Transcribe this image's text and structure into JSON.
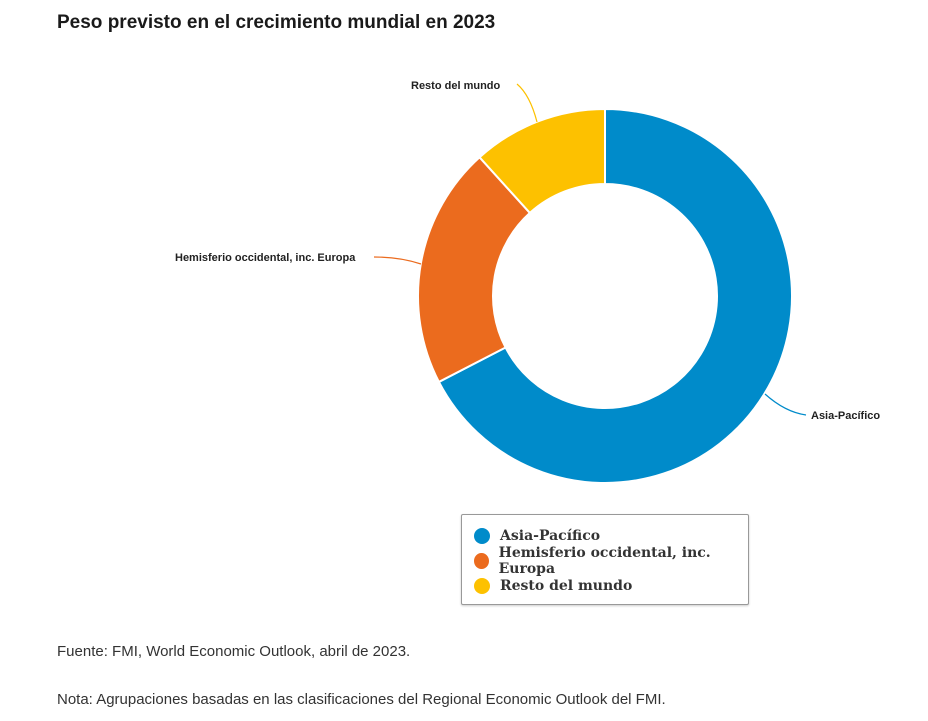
{
  "chart_data": {
    "type": "pie",
    "title": "Peso previsto en el crecimiento mundial en 2023",
    "categories": [
      "Asia-Pacífico",
      "Hemisferio occidental, inc. Europa",
      "Resto del mundo"
    ],
    "values": [
      67.4,
      20.9,
      11.7
    ],
    "unit": "%",
    "colors": [
      "#008bca",
      "#eb6b1e",
      "#fdc100"
    ],
    "donut": true,
    "legend_position": "bottom"
  },
  "footer": {
    "source": "Fuente: FMI, World Economic Outlook, abril de 2023.",
    "note": "Nota: Agrupaciones basadas en las clasificaciones del Regional Economic Outlook del FMI."
  }
}
